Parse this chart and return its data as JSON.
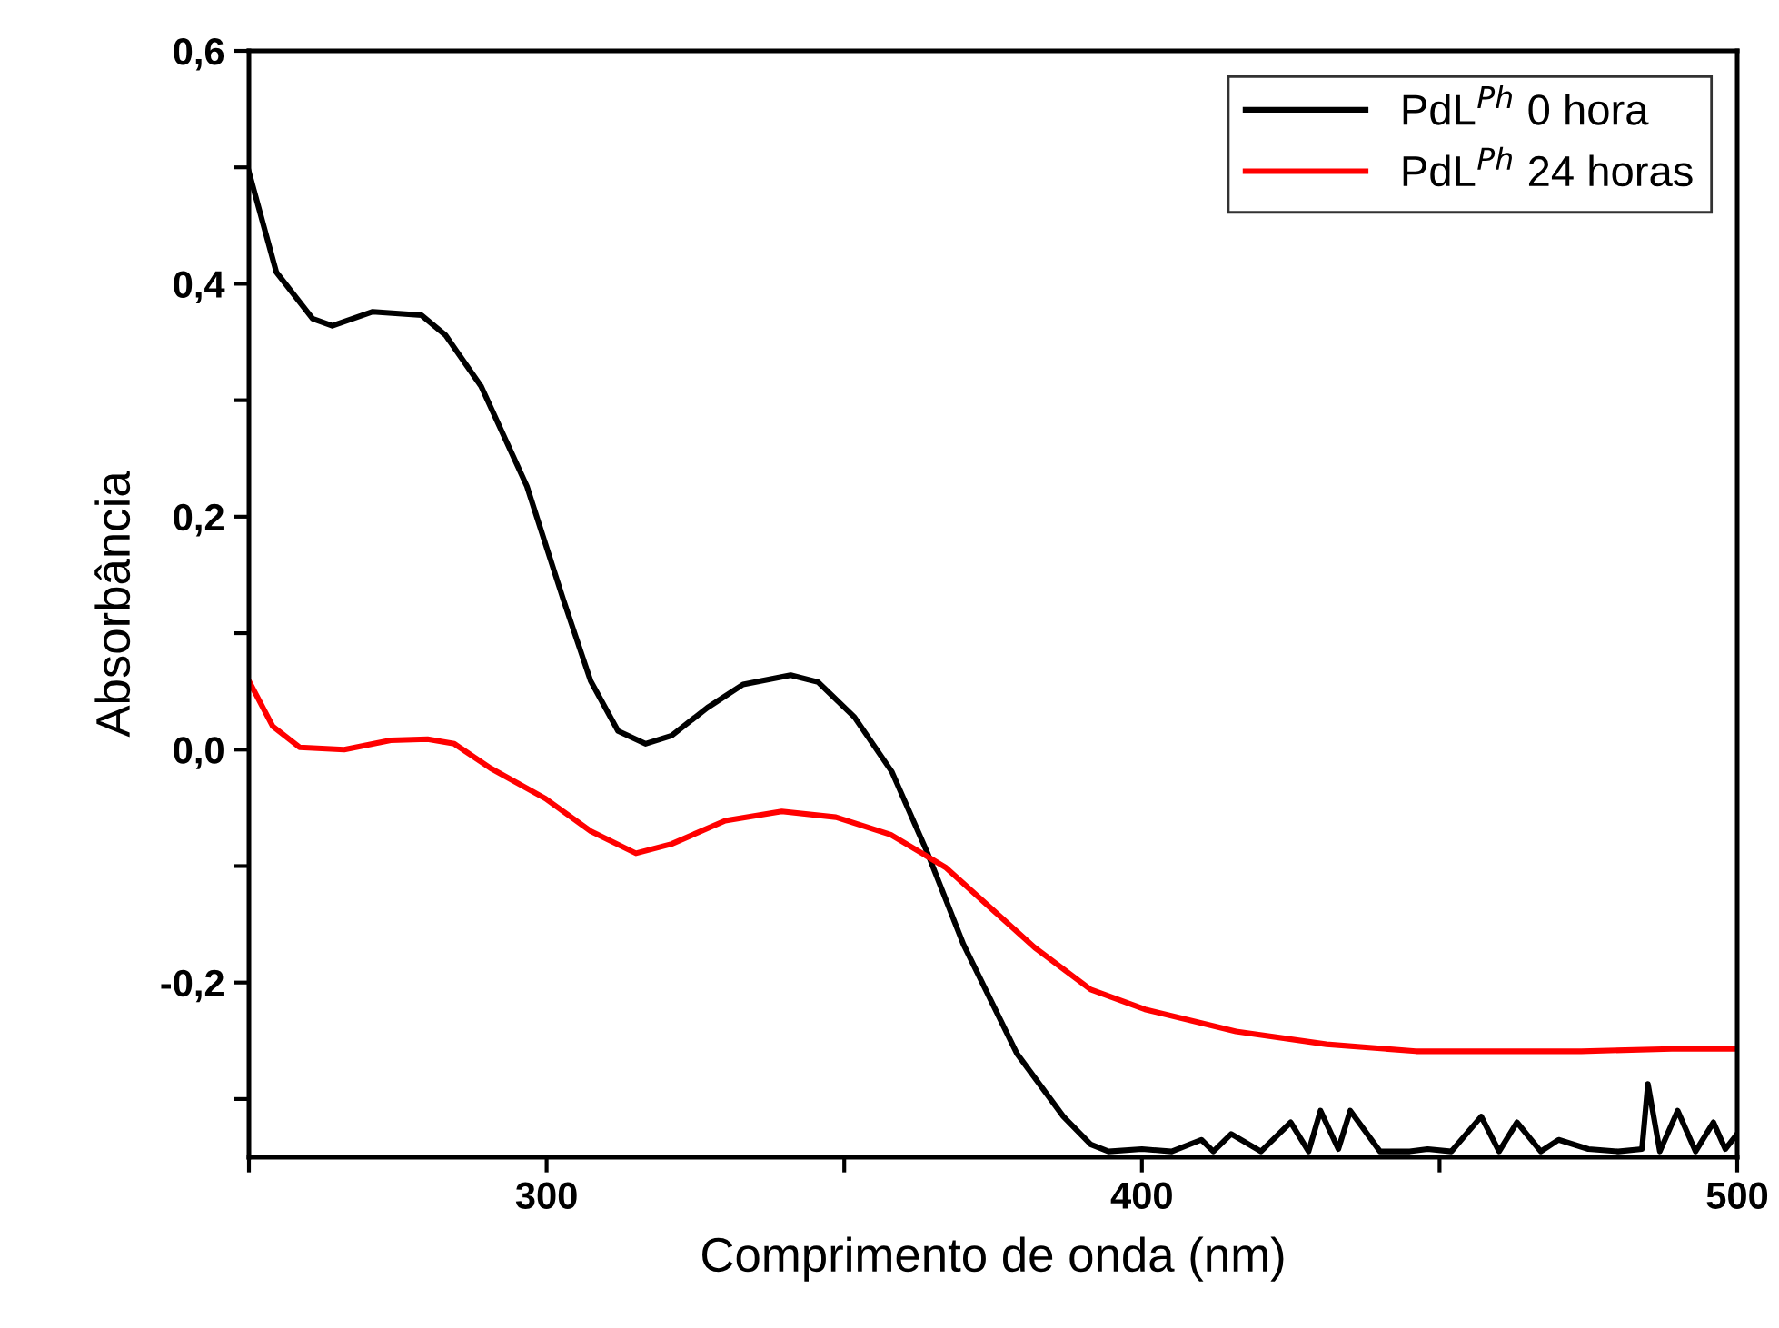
{
  "chart_data": {
    "type": "line",
    "xlabel": "Comprimento de onda (nm)",
    "ylabel": "Absorbância",
    "xlim": [
      250,
      500
    ],
    "xticks": [
      {
        "value": 250,
        "label": null
      },
      300,
      {
        "value": 350,
        "label": null
      },
      400,
      {
        "value": 450,
        "label": null
      },
      500
    ],
    "ylim": [
      -0.35,
      0.6
    ],
    "yticks": [
      {
        "value": -0.3,
        "label": null
      },
      {
        "value": -0.2,
        "label": "-0,2"
      },
      {
        "value": -0.1,
        "label": null
      },
      {
        "value": 0,
        "label": "0,0"
      },
      {
        "value": 0.1,
        "label": null
      },
      {
        "value": 0.2,
        "label": "0,2"
      },
      {
        "value": 0.3,
        "label": null
      },
      {
        "value": 0.4,
        "label": "0,4"
      },
      {
        "value": 0.5,
        "label": null
      },
      {
        "value": 0.6,
        "label": "0,6"
      }
    ],
    "grid": false,
    "legend": "top right",
    "marker": "none",
    "line_style": "solid",
    "series": [
      {
        "name": "PdL$^{Ph}$ 0 hora",
        "color": "#000000",
        "x": [
          250,
          254.6,
          260.7,
          264,
          270.8,
          279,
          283,
          289,
          296.7,
          302.8,
          307.4,
          312,
          316.6,
          321,
          327,
          333,
          341,
          345.6,
          351.7,
          358,
          364,
          370,
          379,
          386.8,
          391.4,
          394.4,
          400,
          405,
          410,
          412,
          415,
          420,
          425,
          428,
          430,
          433,
          435,
          440,
          445,
          448,
          452,
          457,
          460,
          463,
          467,
          470,
          475,
          480,
          484,
          485,
          487,
          490,
          493,
          496,
          498,
          500
        ],
        "values": [
          0.496,
          0.41,
          0.37,
          0.364,
          0.376,
          0.373,
          0.356,
          0.312,
          0.226,
          0.129,
          0.059,
          0.016,
          0.005,
          0.012,
          0.036,
          0.056,
          0.064,
          0.058,
          0.028,
          -0.019,
          -0.089,
          -0.167,
          -0.261,
          -0.315,
          -0.339,
          -0.345,
          -0.343,
          -0.345,
          -0.335,
          -0.345,
          -0.33,
          -0.345,
          -0.32,
          -0.345,
          -0.31,
          -0.343,
          -0.31,
          -0.345,
          -0.345,
          -0.343,
          -0.345,
          -0.315,
          -0.345,
          -0.32,
          -0.345,
          -0.335,
          -0.343,
          -0.345,
          -0.343,
          -0.287,
          -0.345,
          -0.31,
          -0.345,
          -0.32,
          -0.343,
          -0.33
        ]
      },
      {
        "name": "PdL$^{Ph}$ 24 horas",
        "color": "#ff0000",
        "x": [
          250,
          254,
          258.5,
          266,
          273.8,
          280,
          284.5,
          290.6,
          299.8,
          307.4,
          315,
          321,
          330,
          339.5,
          348.6,
          357.8,
          367,
          374.6,
          382,
          391.4,
          400.5,
          415.8,
          431,
          446,
          458.5,
          473.8,
          489,
          500
        ],
        "values": [
          0.059,
          0.02,
          0.002,
          0,
          0.008,
          0.009,
          0.005,
          -0.016,
          -0.042,
          -0.07,
          -0.089,
          -0.081,
          -0.061,
          -0.053,
          -0.058,
          -0.073,
          -0.101,
          -0.136,
          -0.17,
          -0.206,
          -0.223,
          -0.242,
          -0.253,
          -0.259,
          -0.259,
          -0.259,
          -0.257,
          -0.257
        ]
      }
    ]
  }
}
